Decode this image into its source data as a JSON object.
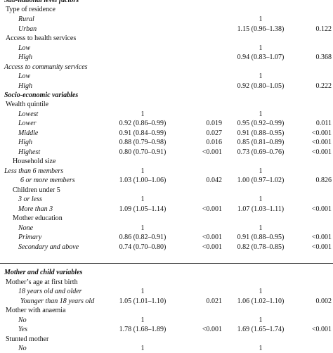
{
  "table": {
    "rows": [
      {
        "label": "Sub-national level factors",
        "style": "heading",
        "indent": 0,
        "or1": "",
        "p1": "",
        "or2": "",
        "p2": ""
      },
      {
        "label": "Type of residence",
        "style": "group",
        "indent": 1,
        "or1": "",
        "p1": "",
        "or2": "",
        "p2": ""
      },
      {
        "label": "Rural",
        "style": "level",
        "indent": 2,
        "or1": "",
        "p1": "",
        "or2": "1",
        "p2": ""
      },
      {
        "label": "Urban",
        "style": "level",
        "indent": 2,
        "or1": "",
        "p1": "",
        "or2": "1.15 (0.96–1.38)",
        "p2": "0.122"
      },
      {
        "label": "Access to health services",
        "style": "group",
        "indent": 1,
        "or1": "",
        "p1": "",
        "or2": "",
        "p2": ""
      },
      {
        "label": "Low",
        "style": "level",
        "indent": 2,
        "or1": "",
        "p1": "",
        "or2": "1",
        "p2": ""
      },
      {
        "label": "High",
        "style": "level",
        "indent": 2,
        "or1": "",
        "p1": "",
        "or2": "0.94 (0.83–1.07)",
        "p2": "0.368"
      },
      {
        "label": "Access to community services",
        "style": "level",
        "indent": 4,
        "or1": "",
        "p1": "",
        "or2": "",
        "p2": ""
      },
      {
        "label": "Low",
        "style": "level",
        "indent": 2,
        "or1": "",
        "p1": "",
        "or2": "1",
        "p2": ""
      },
      {
        "label": "High",
        "style": "level",
        "indent": 2,
        "or1": "",
        "p1": "",
        "or2": "0.92 (0.80–1.05)",
        "p2": "0.222"
      },
      {
        "label": "Socio-economic variables",
        "style": "heading",
        "indent": 0,
        "or1": "",
        "p1": "",
        "or2": "",
        "p2": ""
      },
      {
        "label": "Wealth quintile",
        "style": "group",
        "indent": 1,
        "or1": "",
        "p1": "",
        "or2": "",
        "p2": ""
      },
      {
        "label": "Lowest",
        "style": "level",
        "indent": 2,
        "or1": "1",
        "p1": "",
        "or2": "1",
        "p2": ""
      },
      {
        "label": "Lower",
        "style": "level",
        "indent": 2,
        "or1": "0.92 (0.86–0.99)",
        "p1": "0.019",
        "or2": "0.95 (0.92–0.99)",
        "p2": "0.011"
      },
      {
        "label": "Middle",
        "style": "level",
        "indent": 2,
        "or1": "0.91 (0.84–0.99)",
        "p1": "0.027",
        "or2": "0.91 (0.88–0.95)",
        "p2": "<0.001"
      },
      {
        "label": "High",
        "style": "level",
        "indent": 2,
        "or1": "0.88 (0.79–0.98)",
        "p1": "0.016",
        "or2": "0.85 (0.81–0.89)",
        "p2": "<0.001"
      },
      {
        "label": "Highest",
        "style": "level",
        "indent": 2,
        "or1": "0.80 (0.70–0.91)",
        "p1": "<0.001",
        "or2": "0.73 (0.69–0.76)",
        "p2": "<0.001"
      },
      {
        "label": "Household size",
        "style": "group",
        "indent": 5,
        "or1": "",
        "p1": "",
        "or2": "",
        "p2": ""
      },
      {
        "label": "Less than 6 members",
        "style": "level",
        "indent": 0,
        "or1": "1",
        "p1": "",
        "or2": "1",
        "p2": ""
      },
      {
        "label": "6 or more members",
        "style": "level",
        "indent": 3,
        "or1": "1.03 (1.00–1.06)",
        "p1": "0.042",
        "or2": "1.00 (0.97–1.02)",
        "p2": "0.826"
      },
      {
        "label": "Children under 5",
        "style": "group",
        "indent": 5,
        "or1": "",
        "p1": "",
        "or2": "",
        "p2": ""
      },
      {
        "label": "3 or less",
        "style": "level",
        "indent": 2,
        "or1": "1",
        "p1": "",
        "or2": "1",
        "p2": ""
      },
      {
        "label": "More than 3",
        "style": "level",
        "indent": 2,
        "or1": "1.09 (1.05–1.14)",
        "p1": "<0.001",
        "or2": "1.07 (1.03–1.11)",
        "p2": "<0.001"
      },
      {
        "label": "Mother education",
        "style": "group",
        "indent": 5,
        "or1": "",
        "p1": "",
        "or2": "",
        "p2": ""
      },
      {
        "label": "None",
        "style": "level",
        "indent": 2,
        "or1": "1",
        "p1": "",
        "or2": "1",
        "p2": ""
      },
      {
        "label": "Primary",
        "style": "level",
        "indent": 2,
        "or1": "0.86 (0.82–0.91)",
        "p1": "<0.001",
        "or2": "0.91 (0.88–0.95)",
        "p2": "<0.001"
      },
      {
        "label": "Secondary and above",
        "style": "level",
        "indent": 2,
        "or1": "0.74 (0.70–0.80)",
        "p1": "<0.001",
        "or2": "0.82 (0.78–0.85)",
        "p2": "<0.001"
      },
      {
        "label": "Mother and child variables",
        "style": "heading",
        "indent": 0,
        "or1": "",
        "p1": "",
        "or2": "",
        "p2": ""
      },
      {
        "label": "Mother’s age at first birth",
        "style": "group",
        "indent": 1,
        "or1": "",
        "p1": "",
        "or2": "",
        "p2": ""
      },
      {
        "label": "18 years old and older",
        "style": "level",
        "indent": 2,
        "or1": "1",
        "p1": "",
        "or2": "1",
        "p2": ""
      },
      {
        "label": "Younger than 18 years old",
        "style": "level",
        "indent": 3,
        "or1": "1.05 (1.01–1.10)",
        "p1": "0.021",
        "or2": "1.06 (1.02–1.10)",
        "p2": "0.002"
      },
      {
        "label": "Mother with anaemia",
        "style": "group",
        "indent": 1,
        "or1": "",
        "p1": "",
        "or2": "",
        "p2": ""
      },
      {
        "label": "No",
        "style": "level",
        "indent": 2,
        "or1": "1",
        "p1": "",
        "or2": "1",
        "p2": ""
      },
      {
        "label": "Yes",
        "style": "level",
        "indent": 2,
        "or1": "1.78 (1.68–1.89)",
        "p1": "<0.001",
        "or2": "1.69 (1.65–1.74)",
        "p2": "<0.001"
      },
      {
        "label": "Stunted mother",
        "style": "group",
        "indent": 1,
        "or1": "",
        "p1": "",
        "or2": "",
        "p2": ""
      },
      {
        "label": "No",
        "style": "level",
        "indent": 2,
        "or1": "1",
        "p1": "",
        "or2": "1",
        "p2": ""
      }
    ]
  }
}
